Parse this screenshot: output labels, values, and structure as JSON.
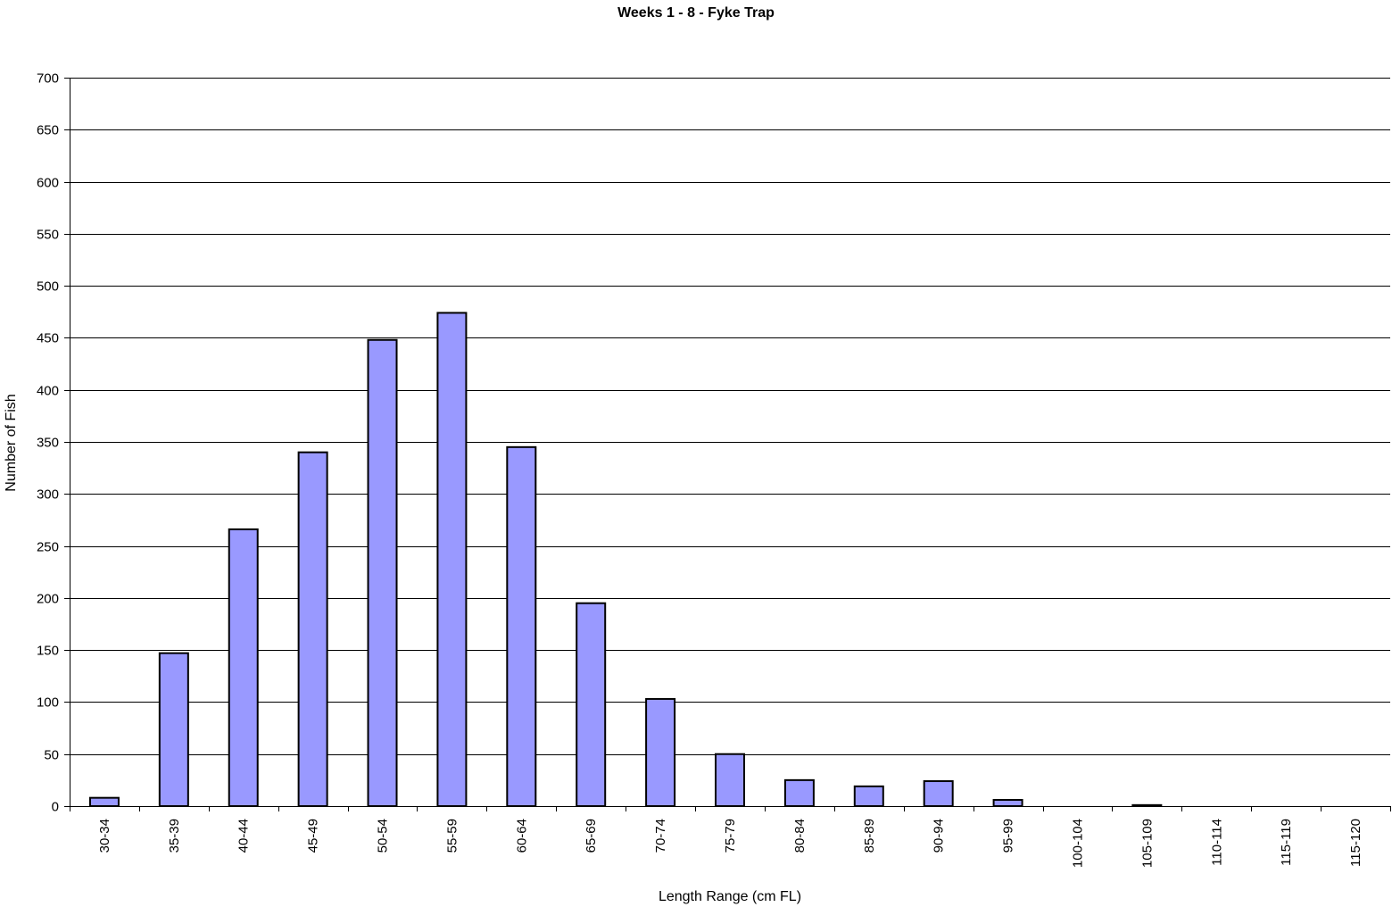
{
  "chart_data": {
    "type": "bar",
    "title": "Weeks 1 - 8  - Fyke Trap",
    "xlabel": "Length Range (cm FL)",
    "ylabel": "Number of Fish",
    "ylim": [
      0,
      700
    ],
    "yticks": [
      0,
      50,
      100,
      150,
      200,
      250,
      300,
      350,
      400,
      450,
      500,
      550,
      600,
      650,
      700
    ],
    "grid": "horizontal",
    "legend": "none",
    "categories": [
      "30-34",
      "35-39",
      "40-44",
      "45-49",
      "50-54",
      "55-59",
      "60-64",
      "65-69",
      "70-74",
      "75-79",
      "80-84",
      "85-89",
      "90-94",
      "95-99",
      "100-104",
      "105-109",
      "110-114",
      "115-119",
      "115-120"
    ],
    "values": [
      8,
      147,
      266,
      340,
      448,
      474,
      345,
      195,
      103,
      50,
      25,
      19,
      24,
      6,
      0,
      1,
      0,
      0,
      0
    ],
    "bar_color": "#9999ff",
    "bar_edge_color": "#000000"
  }
}
